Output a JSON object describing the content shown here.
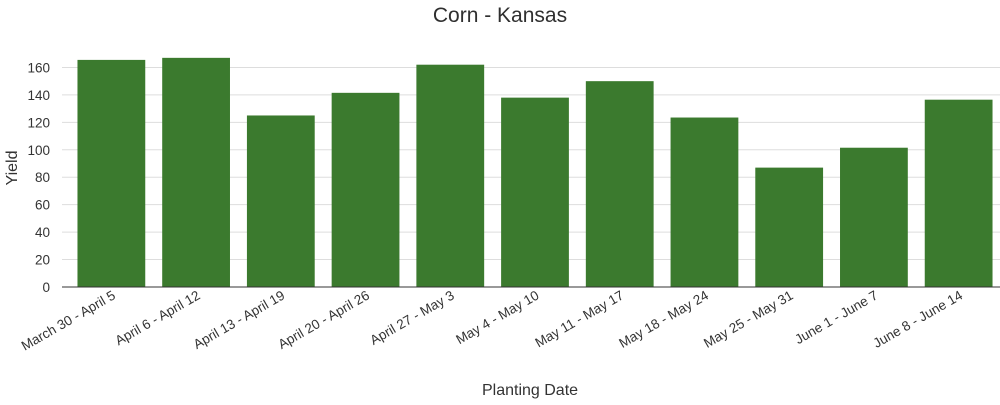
{
  "chart_data": {
    "type": "bar",
    "title": "Corn - Kansas",
    "xlabel": "Planting Date",
    "ylabel": "Yield",
    "categories": [
      "March 30 - April 5",
      "April 6 - April 12",
      "April 13 - April 19",
      "April 20 - April 26",
      "April 27 - May 3",
      "May 4 - May 10",
      "May 11 - May 17",
      "May 18 - May 24",
      "May 25 - May 31",
      "June 1 - June 7",
      "June 8 - June 14"
    ],
    "values": [
      165.5,
      167,
      125,
      141.5,
      162,
      138,
      150,
      123.5,
      87,
      101.5,
      136.5
    ],
    "ylim": [
      0,
      180
    ],
    "yticks": [
      0,
      20,
      40,
      60,
      80,
      100,
      120,
      140,
      160
    ],
    "grid": true,
    "legend": "none",
    "bar_color": "#3b7a2e"
  }
}
